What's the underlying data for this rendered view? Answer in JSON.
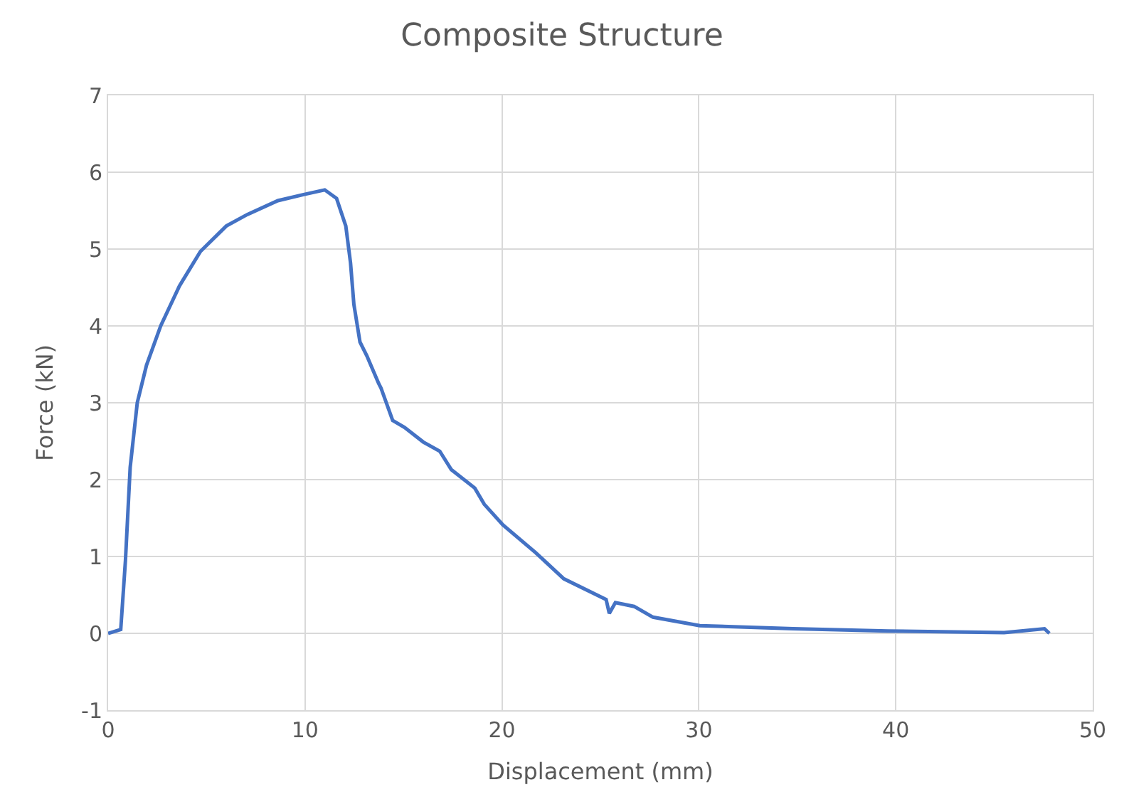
{
  "chart_data": {
    "type": "line",
    "title": "Composite Structure",
    "xlabel": "Displacement (mm)",
    "ylabel": "Force (kN)",
    "xlim": [
      0,
      50
    ],
    "xticks": [
      0,
      10,
      20,
      30,
      40,
      50
    ],
    "ylim": [
      -1,
      7
    ],
    "yticks": [
      -1,
      0,
      1,
      2,
      3,
      4,
      5,
      6,
      7
    ],
    "grid": true,
    "marker": "none",
    "line_style": "solid",
    "series": [
      {
        "color": "#4472c4",
        "x": [
          0,
          0.64,
          0.88,
          1.12,
          1.48,
          1.95,
          2.67,
          3.62,
          4.69,
          6.0,
          7.07,
          8.62,
          9.93,
          11.0,
          11.6,
          12.07,
          12.31,
          12.48,
          12.79,
          13.14,
          13.74,
          13.86,
          14.45,
          15.05,
          16.0,
          16.84,
          17.43,
          18.62,
          19.1,
          20.05,
          21.71,
          23.14,
          25.29,
          25.45,
          25.76,
          26.71,
          27.67,
          30.05,
          34.8,
          39.6,
          45.5,
          47.55,
          47.8
        ],
        "values": [
          0,
          0.05,
          0.95,
          2.16,
          3.0,
          3.49,
          4.0,
          4.52,
          4.97,
          5.3,
          5.45,
          5.63,
          5.71,
          5.77,
          5.66,
          5.3,
          4.82,
          4.28,
          3.79,
          3.61,
          3.25,
          3.19,
          2.77,
          2.68,
          2.49,
          2.37,
          2.13,
          1.89,
          1.68,
          1.41,
          1.05,
          0.71,
          0.44,
          0.26,
          0.4,
          0.35,
          0.21,
          0.1,
          0.06,
          0.03,
          0.01,
          0.06,
          0.0
        ]
      }
    ]
  }
}
